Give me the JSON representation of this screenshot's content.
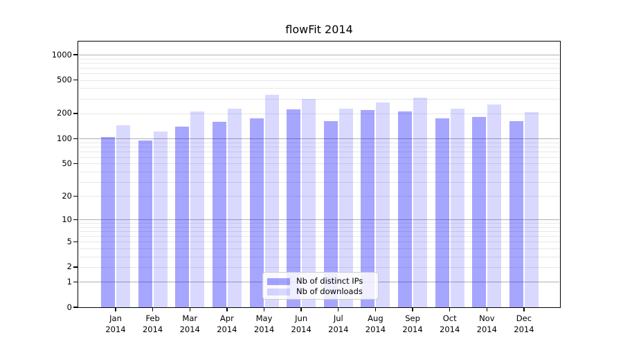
{
  "title": "flowFit 2014",
  "chart_data": {
    "type": "bar",
    "title": "flowFit 2014",
    "categories": [
      "Jan",
      "Feb",
      "Mar",
      "Apr",
      "May",
      "Jun",
      "Jul",
      "Aug",
      "Sep",
      "Oct",
      "Nov",
      "Dec"
    ],
    "category_year": "2014",
    "series": [
      {
        "name": "Nb of distinct IPs",
        "color": "rgba(0,0,255,0.35)",
        "values": [
          105,
          95,
          140,
          160,
          175,
          222,
          162,
          220,
          210,
          175,
          182,
          162
        ]
      },
      {
        "name": "Nb of downloads",
        "color": "rgba(0,0,255,0.15)",
        "values": [
          145,
          122,
          211,
          228,
          334,
          298,
          228,
          272,
          310,
          228,
          256,
          207
        ]
      }
    ],
    "y_axis": {
      "scale": "log1p",
      "tick_labels": [
        0,
        1,
        2,
        5,
        10,
        20,
        50,
        100,
        200,
        500,
        1000
      ],
      "major_gridlines": [
        1,
        10,
        100,
        1000
      ],
      "ylim_top_value": 1400
    },
    "x_axis": {
      "label_format": "month newline year"
    },
    "legend": {
      "position": "bottom-center",
      "entries": [
        "Nb of distinct IPs",
        "Nb of downloads"
      ]
    },
    "grid": "on",
    "colors": {
      "bar_distinct_ips_rendered": "#a9a9f8",
      "bar_downloads_rendered": "#dcdcfa",
      "major_grid": "#b0b0b0",
      "minor_grid": "#e7e7e7",
      "axis": "#000000",
      "background": "#ffffff"
    }
  }
}
